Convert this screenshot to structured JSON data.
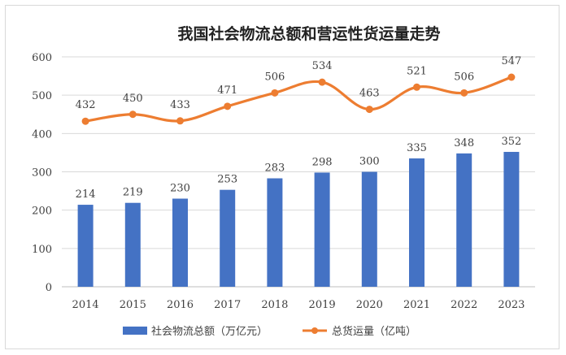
{
  "chart_data": {
    "type": "bar+line",
    "title": "我国社会物流总额和营运性货运量走势",
    "categories": [
      "2014",
      "2015",
      "2016",
      "2017",
      "2018",
      "2019",
      "2020",
      "2021",
      "2022",
      "2023"
    ],
    "series": [
      {
        "name": "社会物流总额（万亿元）",
        "type": "bar",
        "color": "#4472c4",
        "values": [
          214,
          219,
          230,
          253,
          283,
          298,
          300,
          335,
          348,
          352
        ]
      },
      {
        "name": "总货运量（亿吨）",
        "type": "line",
        "color": "#ed7d31",
        "values": [
          432,
          450,
          433,
          471,
          506,
          534,
          463,
          521,
          506,
          547
        ]
      }
    ],
    "ylim": [
      0,
      600
    ],
    "yticks": [
      0,
      100,
      200,
      300,
      400,
      500,
      600
    ],
    "grid": true,
    "legend": "bottom"
  }
}
